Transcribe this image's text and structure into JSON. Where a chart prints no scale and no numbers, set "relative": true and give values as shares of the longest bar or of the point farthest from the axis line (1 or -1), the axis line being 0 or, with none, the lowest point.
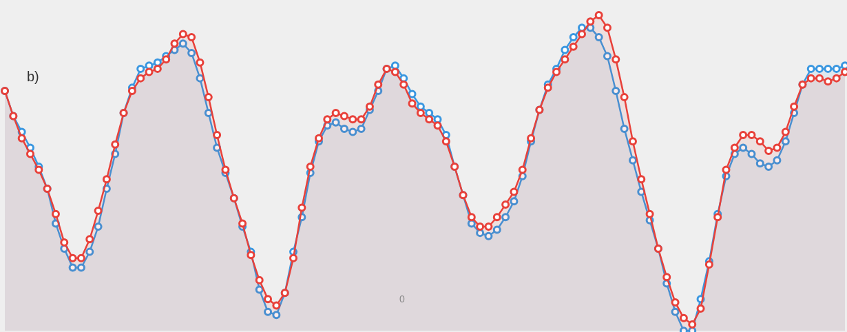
{
  "chart_data": {
    "type": "area",
    "relative": true,
    "categories": [
      null,
      null,
      null,
      null,
      null,
      null,
      null,
      null,
      null,
      null,
      null,
      null,
      null,
      null,
      null,
      null,
      null,
      null,
      null,
      null,
      null,
      null,
      null,
      null,
      null,
      null,
      null,
      null,
      null,
      null,
      null,
      null,
      null,
      null,
      null,
      null,
      null,
      null,
      null,
      null,
      null,
      null,
      null,
      null,
      null,
      null,
      null,
      null,
      null,
      null,
      null,
      null,
      null,
      null,
      null,
      null,
      null,
      null,
      null,
      null,
      null,
      null,
      null,
      null,
      null,
      null,
      null,
      null,
      null,
      null,
      null,
      null,
      null,
      null,
      null,
      null,
      null,
      null,
      null,
      null,
      null,
      null,
      null,
      null,
      null,
      null,
      null,
      null,
      null,
      null,
      null,
      null,
      null,
      null,
      null,
      null,
      null,
      null,
      null,
      null
    ],
    "annotations": [
      "b)",
      "0"
    ],
    "marker": "circle",
    "line_style": "solid",
    "series": [
      {
        "color": "#3a97e0",
        "values": [
          0.76,
          0.68,
          0.63,
          0.58,
          0.52,
          0.45,
          0.34,
          0.26,
          0.2,
          0.2,
          0.25,
          0.33,
          0.45,
          0.56,
          0.69,
          0.77,
          0.83,
          0.84,
          0.85,
          0.87,
          0.89,
          0.91,
          0.88,
          0.8,
          0.69,
          0.58,
          0.5,
          0.42,
          0.33,
          0.25,
          0.13,
          0.06,
          0.05,
          0.12,
          0.25,
          0.36,
          0.5,
          0.6,
          0.65,
          0.66,
          0.64,
          0.63,
          0.64,
          0.7,
          0.76,
          0.83,
          0.84,
          0.8,
          0.75,
          0.71,
          0.69,
          0.67,
          0.62,
          0.52,
          0.43,
          0.34,
          0.31,
          0.3,
          0.32,
          0.36,
          0.41,
          0.49,
          0.6,
          0.7,
          0.78,
          0.83,
          0.89,
          0.93,
          0.96,
          0.96,
          0.93,
          0.87,
          0.76,
          0.64,
          0.54,
          0.44,
          0.35,
          0.26,
          0.15,
          0.06,
          0.0,
          0.0,
          0.1,
          0.22,
          0.37,
          0.49,
          0.56,
          0.58,
          0.56,
          0.53,
          0.52,
          0.54,
          0.6,
          0.69,
          0.78,
          0.83,
          0.83,
          0.83,
          0.83,
          0.84
        ]
      },
      {
        "color": "#e8413a",
        "values": [
          0.76,
          0.68,
          0.61,
          0.56,
          0.51,
          0.45,
          0.37,
          0.28,
          0.23,
          0.23,
          0.29,
          0.38,
          0.48,
          0.59,
          0.69,
          0.76,
          0.8,
          0.82,
          0.83,
          0.86,
          0.91,
          0.94,
          0.93,
          0.85,
          0.74,
          0.62,
          0.51,
          0.42,
          0.34,
          0.24,
          0.16,
          0.1,
          0.08,
          0.12,
          0.23,
          0.39,
          0.52,
          0.61,
          0.67,
          0.69,
          0.68,
          0.67,
          0.67,
          0.71,
          0.78,
          0.83,
          0.82,
          0.78,
          0.72,
          0.69,
          0.67,
          0.65,
          0.6,
          0.52,
          0.43,
          0.36,
          0.33,
          0.33,
          0.36,
          0.4,
          0.44,
          0.51,
          0.61,
          0.7,
          0.77,
          0.82,
          0.86,
          0.9,
          0.94,
          0.98,
          1.0,
          0.96,
          0.86,
          0.74,
          0.6,
          0.48,
          0.37,
          0.26,
          0.17,
          0.09,
          0.04,
          0.02,
          0.07,
          0.21,
          0.36,
          0.51,
          0.58,
          0.62,
          0.62,
          0.6,
          0.57,
          0.58,
          0.63,
          0.71,
          0.78,
          0.8,
          0.8,
          0.79,
          0.8,
          0.82
        ]
      }
    ]
  }
}
